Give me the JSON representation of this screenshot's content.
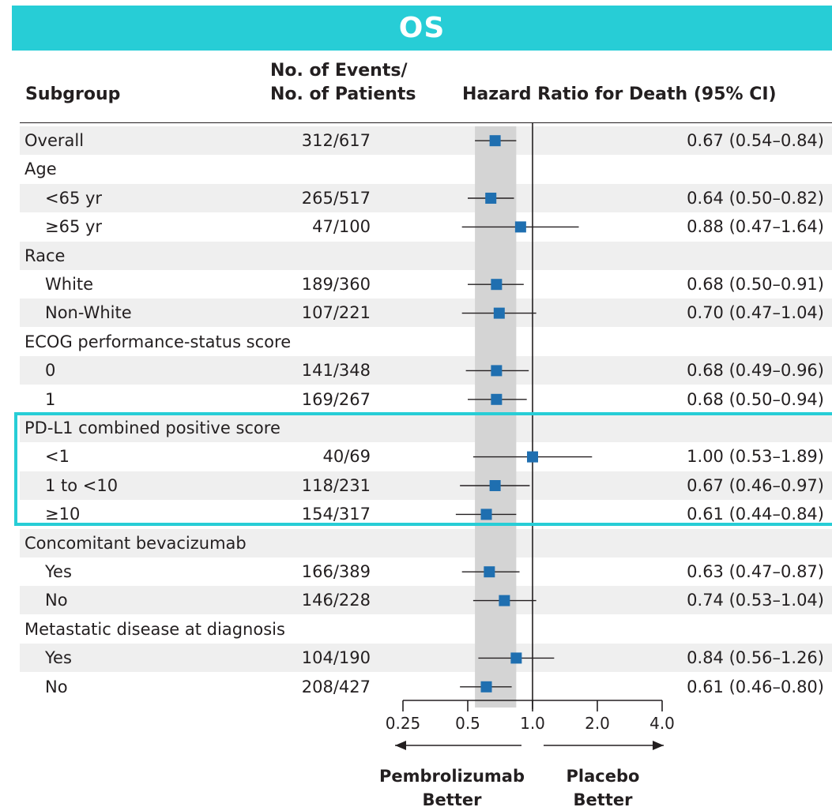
{
  "banner_title": "OS",
  "headers": {
    "subgroup": "Subgroup",
    "events_line1": "No. of Events/",
    "events_line2": "No. of Patients",
    "hazard": "Hazard Ratio for Death (95% CI)"
  },
  "colors": {
    "banner": "#27cdd6",
    "marker": "#1f6fb0",
    "highlight": "#27cdd6",
    "shade_band": "#d4d4d4",
    "row_shade": "#efefef"
  },
  "footer": {
    "left_line1": "Pembrolizumab",
    "left_line2": "Better",
    "right_line1": "Placebo",
    "right_line2": "Better"
  },
  "highlighted_group": "PD-L1 combined positive score",
  "chart_data": {
    "type": "forest",
    "x_scale": "log2",
    "xlim": [
      0.25,
      4.0
    ],
    "x_ticks": [
      "0.25",
      "0.5",
      "1.0",
      "2.0",
      "4.0"
    ],
    "reference_line": 1.0,
    "shaded_band": [
      0.54,
      0.84
    ],
    "rows": [
      {
        "label": "Overall",
        "indent": false,
        "events": "312/617",
        "ci_text": "0.67 (0.54–0.84)",
        "hr": 0.67,
        "lo": 0.54,
        "hi": 0.84
      },
      {
        "label": "Age",
        "indent": false,
        "events": "",
        "ci_text": ""
      },
      {
        "label": "<65 yr",
        "indent": true,
        "events": "265/517",
        "ci_text": "0.64 (0.50–0.82)",
        "hr": 0.64,
        "lo": 0.5,
        "hi": 0.82
      },
      {
        "label": "≥65 yr",
        "indent": true,
        "events": "47/100",
        "ci_text": "0.88 (0.47–1.64)",
        "hr": 0.88,
        "lo": 0.47,
        "hi": 1.64
      },
      {
        "label": "Race",
        "indent": false,
        "events": "",
        "ci_text": ""
      },
      {
        "label": "White",
        "indent": true,
        "events": "189/360",
        "ci_text": "0.68 (0.50–0.91)",
        "hr": 0.68,
        "lo": 0.5,
        "hi": 0.91
      },
      {
        "label": "Non-White",
        "indent": true,
        "events": "107/221",
        "ci_text": "0.70 (0.47–1.04)",
        "hr": 0.7,
        "lo": 0.47,
        "hi": 1.04
      },
      {
        "label": "ECOG performance-status score",
        "indent": false,
        "events": "",
        "ci_text": ""
      },
      {
        "label": "0",
        "indent": true,
        "events": "141/348",
        "ci_text": "0.68 (0.49–0.96)",
        "hr": 0.68,
        "lo": 0.49,
        "hi": 0.96
      },
      {
        "label": "1",
        "indent": true,
        "events": "169/267",
        "ci_text": "0.68 (0.50–0.94)",
        "hr": 0.68,
        "lo": 0.5,
        "hi": 0.94
      },
      {
        "label": "PD-L1 combined positive score",
        "indent": false,
        "events": "",
        "ci_text": ""
      },
      {
        "label": "<1",
        "indent": true,
        "events": "40/69",
        "ci_text": "1.00 (0.53–1.89)",
        "hr": 1.0,
        "lo": 0.53,
        "hi": 1.89
      },
      {
        "label": "1 to <10",
        "indent": true,
        "events": "118/231",
        "ci_text": "0.67 (0.46–0.97)",
        "hr": 0.67,
        "lo": 0.46,
        "hi": 0.97
      },
      {
        "label": "≥10",
        "indent": true,
        "events": "154/317",
        "ci_text": "0.61 (0.44–0.84)",
        "hr": 0.61,
        "lo": 0.44,
        "hi": 0.84
      },
      {
        "label": "Concomitant bevacizumab",
        "indent": false,
        "events": "",
        "ci_text": ""
      },
      {
        "label": "Yes",
        "indent": true,
        "events": "166/389",
        "ci_text": "0.63 (0.47–0.87)",
        "hr": 0.63,
        "lo": 0.47,
        "hi": 0.87
      },
      {
        "label": "No",
        "indent": true,
        "events": "146/228",
        "ci_text": "0.74 (0.53–1.04)",
        "hr": 0.74,
        "lo": 0.53,
        "hi": 1.04
      },
      {
        "label": "Metastatic disease at diagnosis",
        "indent": false,
        "events": "",
        "ci_text": ""
      },
      {
        "label": "Yes",
        "indent": true,
        "events": "104/190",
        "ci_text": "0.84 (0.56–1.26)",
        "hr": 0.84,
        "lo": 0.56,
        "hi": 1.26
      },
      {
        "label": "No",
        "indent": true,
        "events": "208/427",
        "ci_text": "0.61 (0.46–0.80)",
        "hr": 0.61,
        "lo": 0.46,
        "hi": 0.8
      }
    ]
  }
}
